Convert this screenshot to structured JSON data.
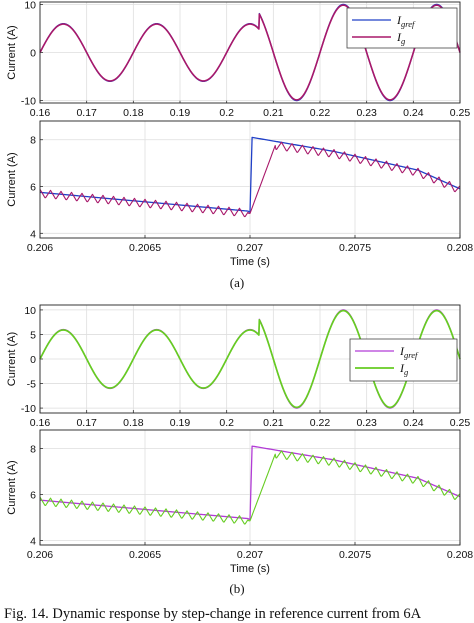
{
  "caption": "Fig. 14. Dynamic response by step-change in reference current from 6A",
  "panel_labels": [
    "(a)",
    "(b)"
  ],
  "chart_data": [
    {
      "type": "line",
      "panel": "(a)",
      "ylabel": "Current (A)",
      "xlabel": "",
      "xlim": [
        0.16,
        0.25
      ],
      "ylim": [
        -10.5,
        10.5
      ],
      "xticks": [
        "0.16",
        "0.17",
        "0.18",
        "0.19",
        "0.2",
        "0.21",
        "0.22",
        "0.23",
        "0.24",
        "0.25"
      ],
      "yticks": [
        "-10",
        "0",
        "10"
      ],
      "grid": true,
      "legend": "top-right",
      "waveform": {
        "frequency_hz": 50,
        "amplitude_before": 6,
        "amplitude_after": 10,
        "step_time": 0.207,
        "current_at_step": 8.1
      },
      "series": [
        {
          "name": "I_gref",
          "label_main": "I",
          "label_sub": "gref",
          "color": "#2040c8",
          "width": 1.3
        },
        {
          "name": "I_g",
          "label_main": "I",
          "label_sub": "g",
          "color": "#a8186a",
          "width": 1.6
        }
      ]
    },
    {
      "type": "line",
      "panel": "(a)",
      "ylabel": "Current (A)",
      "xlabel": "Time (s)",
      "xlim": [
        0.206,
        0.208
      ],
      "ylim": [
        3.8,
        8.8
      ],
      "xticks": [
        "0.206",
        "0.2065",
        "0.207",
        "0.2075",
        "0.208"
      ],
      "yticks": [
        "4",
        "6",
        "8"
      ],
      "grid": true,
      "ripple": {
        "amplitude": 0.18,
        "cycles": 40
      },
      "series": [
        {
          "name": "I_gref",
          "color": "#2040c8",
          "width": 1.3,
          "x": [
            0.206,
            0.20699,
            0.207,
            0.20701,
            0.2074,
            0.2078,
            0.208
          ],
          "y": [
            5.75,
            4.95,
            4.9,
            8.1,
            7.5,
            6.7,
            5.9
          ]
        },
        {
          "name": "I_g",
          "color": "#a8186a",
          "width": 1.1,
          "x": [
            0.206,
            0.207,
            0.20712,
            0.2074,
            0.2078,
            0.208
          ],
          "y": [
            5.7,
            4.85,
            7.75,
            7.4,
            6.6,
            5.85
          ]
        }
      ]
    },
    {
      "type": "line",
      "panel": "(b)",
      "ylabel": "Current (A)",
      "xlabel": "",
      "xlim": [
        0.16,
        0.25
      ],
      "ylim": [
        -11,
        11
      ],
      "xticks": [
        "0.16",
        "0.17",
        "0.18",
        "0.19",
        "0.2",
        "0.21",
        "0.22",
        "0.23",
        "0.24",
        "0.25"
      ],
      "yticks": [
        "-10",
        "-5",
        "0",
        "5",
        "10"
      ],
      "grid": true,
      "legend": "top-right",
      "waveform": {
        "frequency_hz": 50,
        "amplitude_before": 6,
        "amplitude_after": 10,
        "step_time": 0.207,
        "current_at_step": 8.1
      },
      "series": [
        {
          "name": "I_gref",
          "label_main": "I",
          "label_sub": "gref",
          "color": "#b23cd6",
          "width": 1.3
        },
        {
          "name": "I_g",
          "label_main": "I",
          "label_sub": "g",
          "color": "#66cc22",
          "width": 1.7
        }
      ]
    },
    {
      "type": "line",
      "panel": "(b)",
      "ylabel": "Current (A)",
      "xlabel": "Time (s)",
      "xlim": [
        0.206,
        0.208
      ],
      "ylim": [
        3.8,
        8.8
      ],
      "xticks": [
        "0.206",
        "0.2065",
        "0.207",
        "0.2075",
        "0.208"
      ],
      "yticks": [
        "4",
        "6",
        "8"
      ],
      "grid": true,
      "ripple": {
        "amplitude": 0.18,
        "cycles": 40
      },
      "series": [
        {
          "name": "I_gref",
          "color": "#b23cd6",
          "width": 1.3,
          "x": [
            0.206,
            0.20699,
            0.207,
            0.20701,
            0.2074,
            0.2078,
            0.208
          ],
          "y": [
            5.75,
            4.95,
            4.9,
            8.1,
            7.5,
            6.7,
            5.9
          ]
        },
        {
          "name": "I_g",
          "color": "#66cc22",
          "width": 1.1,
          "x": [
            0.206,
            0.207,
            0.20712,
            0.2074,
            0.2078,
            0.208
          ],
          "y": [
            5.7,
            4.85,
            7.75,
            7.4,
            6.6,
            5.85
          ]
        }
      ]
    }
  ]
}
